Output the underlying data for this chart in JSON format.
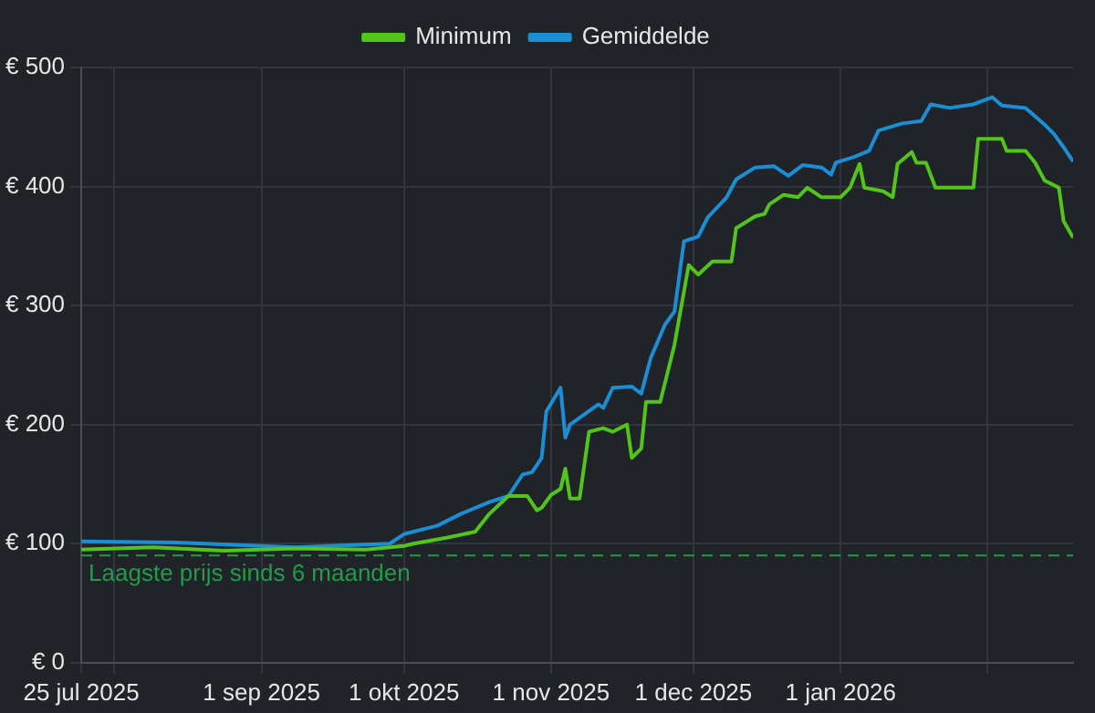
{
  "chart_data": {
    "type": "line",
    "xlim": [
      "2025-07-25",
      "2026-02-19"
    ],
    "xticks": [
      {
        "value": "2025-07-25",
        "label": "25 jul 2025"
      },
      {
        "value": "2025-08-01",
        "label": null
      },
      {
        "value": "2025-09-01",
        "label": "1 sep 2025"
      },
      {
        "value": "2025-10-01",
        "label": "1 okt 2025"
      },
      {
        "value": "2025-11-01",
        "label": "1 nov 2025"
      },
      {
        "value": "2025-12-01",
        "label": "1 dec 2025"
      },
      {
        "value": "2026-01-01",
        "label": "1 jan 2026"
      },
      {
        "value": "2026-02-01",
        "label": null
      }
    ],
    "ylim": [
      0,
      500
    ],
    "yticks": [
      {
        "value": 0,
        "label": "€ 0"
      },
      {
        "value": 100,
        "label": "€ 100"
      },
      {
        "value": 200,
        "label": "€ 200"
      },
      {
        "value": 300,
        "label": "€ 300"
      },
      {
        "value": 400,
        "label": "€ 400"
      },
      {
        "value": 500,
        "label": "€ 500"
      }
    ],
    "grid": true,
    "legend": "top",
    "marker": "none",
    "line_style": "solid",
    "series": [
      {
        "name": "Minimum",
        "color": "#52c41a",
        "x": [
          "2025-07-25",
          "2025-08-09",
          "2025-08-24",
          "2025-09-08",
          "2025-09-23",
          "2025-10-01",
          "2025-10-03",
          "2025-10-10",
          "2025-10-16",
          "2025-10-19",
          "2025-10-23",
          "2025-10-27",
          "2025-10-29",
          "2025-10-30",
          "2025-11-01",
          "2025-11-03",
          "2025-11-04",
          "2025-11-05",
          "2025-11-07",
          "2025-11-09",
          "2025-11-12",
          "2025-11-14",
          "2025-11-17",
          "2025-11-18",
          "2025-11-20",
          "2025-11-21",
          "2025-11-24",
          "2025-11-27",
          "2025-11-30",
          "2025-12-02",
          "2025-12-05",
          "2025-12-09",
          "2025-12-10",
          "2025-12-14",
          "2025-12-16",
          "2025-12-17",
          "2025-12-20",
          "2025-12-23",
          "2025-12-25",
          "2025-12-28",
          "2026-01-01",
          "2026-01-03",
          "2026-01-05",
          "2026-01-06",
          "2026-01-10",
          "2026-01-12",
          "2026-01-13",
          "2026-01-16",
          "2026-01-17",
          "2026-01-19",
          "2026-01-21",
          "2026-01-29",
          "2026-01-30",
          "2026-02-04",
          "2026-02-05",
          "2026-02-09",
          "2026-02-11",
          "2026-02-13",
          "2026-02-16",
          "2026-02-17",
          "2026-02-19"
        ],
        "values": [
          95,
          97,
          94,
          96,
          95,
          98,
          100,
          105,
          110,
          125,
          140,
          140,
          128,
          130,
          141,
          146,
          163,
          138,
          138,
          194,
          197,
          194,
          200,
          172,
          180,
          219,
          219,
          267,
          334,
          326,
          337,
          337,
          365,
          375,
          377,
          385,
          393,
          391,
          399,
          391,
          391,
          399,
          419,
          399,
          396,
          391,
          419,
          429,
          420,
          420,
          399,
          399,
          440,
          440,
          430,
          430,
          420,
          405,
          399,
          371,
          357
        ]
      },
      {
        "name": "Gemiddelde",
        "color": "#1a8fd6",
        "x": [
          "2025-07-25",
          "2025-08-14",
          "2025-09-08",
          "2025-09-28",
          "2025-10-01",
          "2025-10-08",
          "2025-10-13",
          "2025-10-19",
          "2025-10-23",
          "2025-10-26",
          "2025-10-28",
          "2025-10-30",
          "2025-10-31",
          "2025-11-03",
          "2025-11-04",
          "2025-11-05",
          "2025-11-11",
          "2025-11-12",
          "2025-11-14",
          "2025-11-18",
          "2025-11-20",
          "2025-11-22",
          "2025-11-25",
          "2025-11-27",
          "2025-11-29",
          "2025-12-02",
          "2025-12-04",
          "2025-12-08",
          "2025-12-10",
          "2025-12-14",
          "2025-12-18",
          "2025-12-21",
          "2025-12-24",
          "2025-12-28",
          "2025-12-30",
          "2025-12-31",
          "2026-01-04",
          "2026-01-07",
          "2026-01-09",
          "2026-01-14",
          "2026-01-18",
          "2026-01-20",
          "2026-01-24",
          "2026-01-29",
          "2026-02-02",
          "2026-02-04",
          "2026-02-09",
          "2026-02-13",
          "2026-02-15",
          "2026-02-17",
          "2026-02-19"
        ],
        "values": [
          102,
          101,
          97,
          100,
          108,
          115,
          125,
          135,
          140,
          158,
          160,
          172,
          211,
          231,
          189,
          200,
          217,
          214,
          231,
          232,
          226,
          256,
          284,
          295,
          354,
          358,
          374,
          391,
          406,
          416,
          417,
          409,
          418,
          416,
          410,
          420,
          425,
          430,
          447,
          453,
          455,
          469,
          466,
          469,
          475,
          468,
          466,
          452,
          444,
          433,
          421
        ]
      }
    ],
    "ref_lines": [
      {
        "axis": "y",
        "value": 90,
        "label": "Laagste prijs sinds 6 maanden",
        "color": "#1e9e4a",
        "line_style": "dashed"
      }
    ]
  }
}
